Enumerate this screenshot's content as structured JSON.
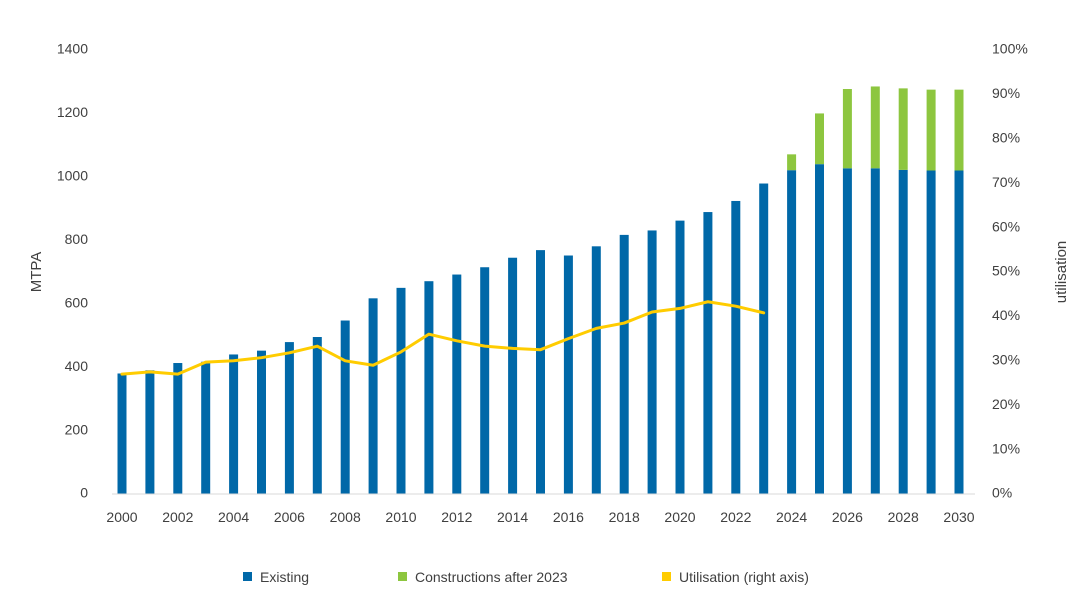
{
  "chart_data": {
    "type": "bar",
    "title": "",
    "xlabel": "",
    "ylabel": "MTPA",
    "ylabel_right": "utilisation",
    "ylim": [
      0,
      1400
    ],
    "ylim_right": [
      0,
      1
    ],
    "yticks": [
      "0",
      "200",
      "400",
      "600",
      "800",
      "1000",
      "1200",
      "1400"
    ],
    "yticks_right": [
      "0%",
      "10%",
      "20%",
      "30%",
      "40%",
      "50%",
      "60%",
      "70%",
      "80%",
      "90%",
      "100%"
    ],
    "xtick_labels": [
      "2000",
      "2002",
      "2004",
      "2006",
      "2008",
      "2010",
      "2012",
      "2014",
      "2016",
      "2018",
      "2020",
      "2022",
      "2024",
      "2026",
      "2028",
      "2030"
    ],
    "grid": false,
    "legend_position": "bottom",
    "categories": [
      2000,
      2001,
      2002,
      2003,
      2004,
      2005,
      2006,
      2007,
      2008,
      2009,
      2010,
      2011,
      2012,
      2013,
      2014,
      2015,
      2016,
      2017,
      2018,
      2019,
      2020,
      2021,
      2022,
      2023,
      2024,
      2025,
      2026,
      2027,
      2028,
      2029,
      2030
    ],
    "series": [
      {
        "name": "Existing",
        "kind": "bar",
        "stack": "capacity",
        "axis": "left",
        "color": "#0068a8",
        "values": [
          380,
          390,
          413,
          417,
          440,
          452,
          479,
          495,
          547,
          617,
          650,
          671,
          692,
          715,
          745,
          769,
          752,
          781,
          817,
          831,
          862,
          889,
          924,
          979,
          1021,
          1040,
          1027,
          1027,
          1022,
          1020,
          1020
        ]
      },
      {
        "name": "Constructions after 2023",
        "kind": "bar",
        "stack": "capacity",
        "axis": "left",
        "color": "#8dc63f",
        "values": [
          0,
          0,
          0,
          0,
          0,
          0,
          0,
          0,
          0,
          0,
          0,
          0,
          0,
          0,
          0,
          0,
          0,
          0,
          0,
          0,
          0,
          0,
          0,
          0,
          50,
          160,
          250,
          258,
          257,
          255,
          255
        ]
      },
      {
        "name": "Utilisation (right axis)",
        "kind": "line",
        "axis": "right",
        "color": "#ffcc00",
        "values": [
          0.27,
          0.275,
          0.27,
          0.297,
          0.3,
          0.307,
          0.318,
          0.333,
          0.3,
          0.29,
          0.32,
          0.36,
          0.345,
          0.333,
          0.328,
          0.325,
          0.35,
          0.373,
          0.385,
          0.41,
          0.418,
          0.433,
          0.423,
          0.408,
          null,
          null,
          null,
          null,
          null,
          null,
          null
        ]
      }
    ]
  }
}
